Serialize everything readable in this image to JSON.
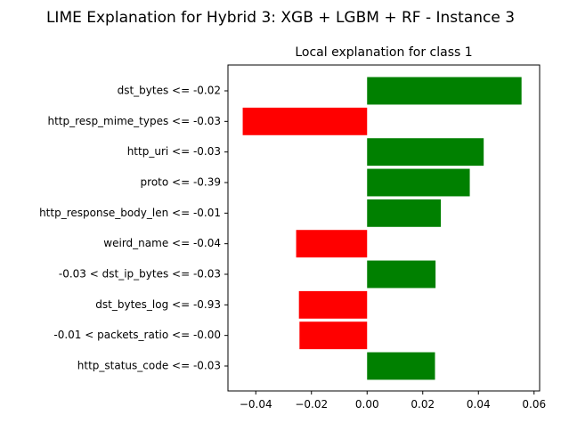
{
  "figure": {
    "suptitle": "LIME Explanation for Hybrid 3: XGB + LGBM + RF - Instance 3"
  },
  "chart_data": {
    "type": "bar",
    "orientation": "horizontal",
    "title": "Local explanation for class 1",
    "xlabel": "",
    "ylabel": "",
    "xlim": [
      -0.05,
      0.062
    ],
    "xticks": [
      -0.04,
      -0.02,
      0.0,
      0.02,
      0.04,
      0.06
    ],
    "xtick_labels": [
      "−0.04",
      "−0.02",
      "0.00",
      "0.02",
      "0.04",
      "0.06"
    ],
    "grid": false,
    "positive_color": "#008000",
    "negative_color": "#ff0000",
    "categories": [
      "dst_bytes <= -0.02",
      "http_resp_mime_types <= -0.03",
      "http_uri <= -0.03",
      "proto <= -0.39",
      "http_response_body_len <= -0.01",
      "weird_name <= -0.04",
      "-0.03 < dst_ip_bytes <= -0.03",
      "dst_bytes_log <= -0.93",
      "-0.01 < packets_ratio <= -0.00",
      "http_status_code <= -0.03"
    ],
    "values": [
      0.0555,
      -0.0447,
      0.0419,
      0.0369,
      0.0265,
      -0.0255,
      0.0246,
      -0.0245,
      -0.0243,
      0.0244
    ]
  }
}
